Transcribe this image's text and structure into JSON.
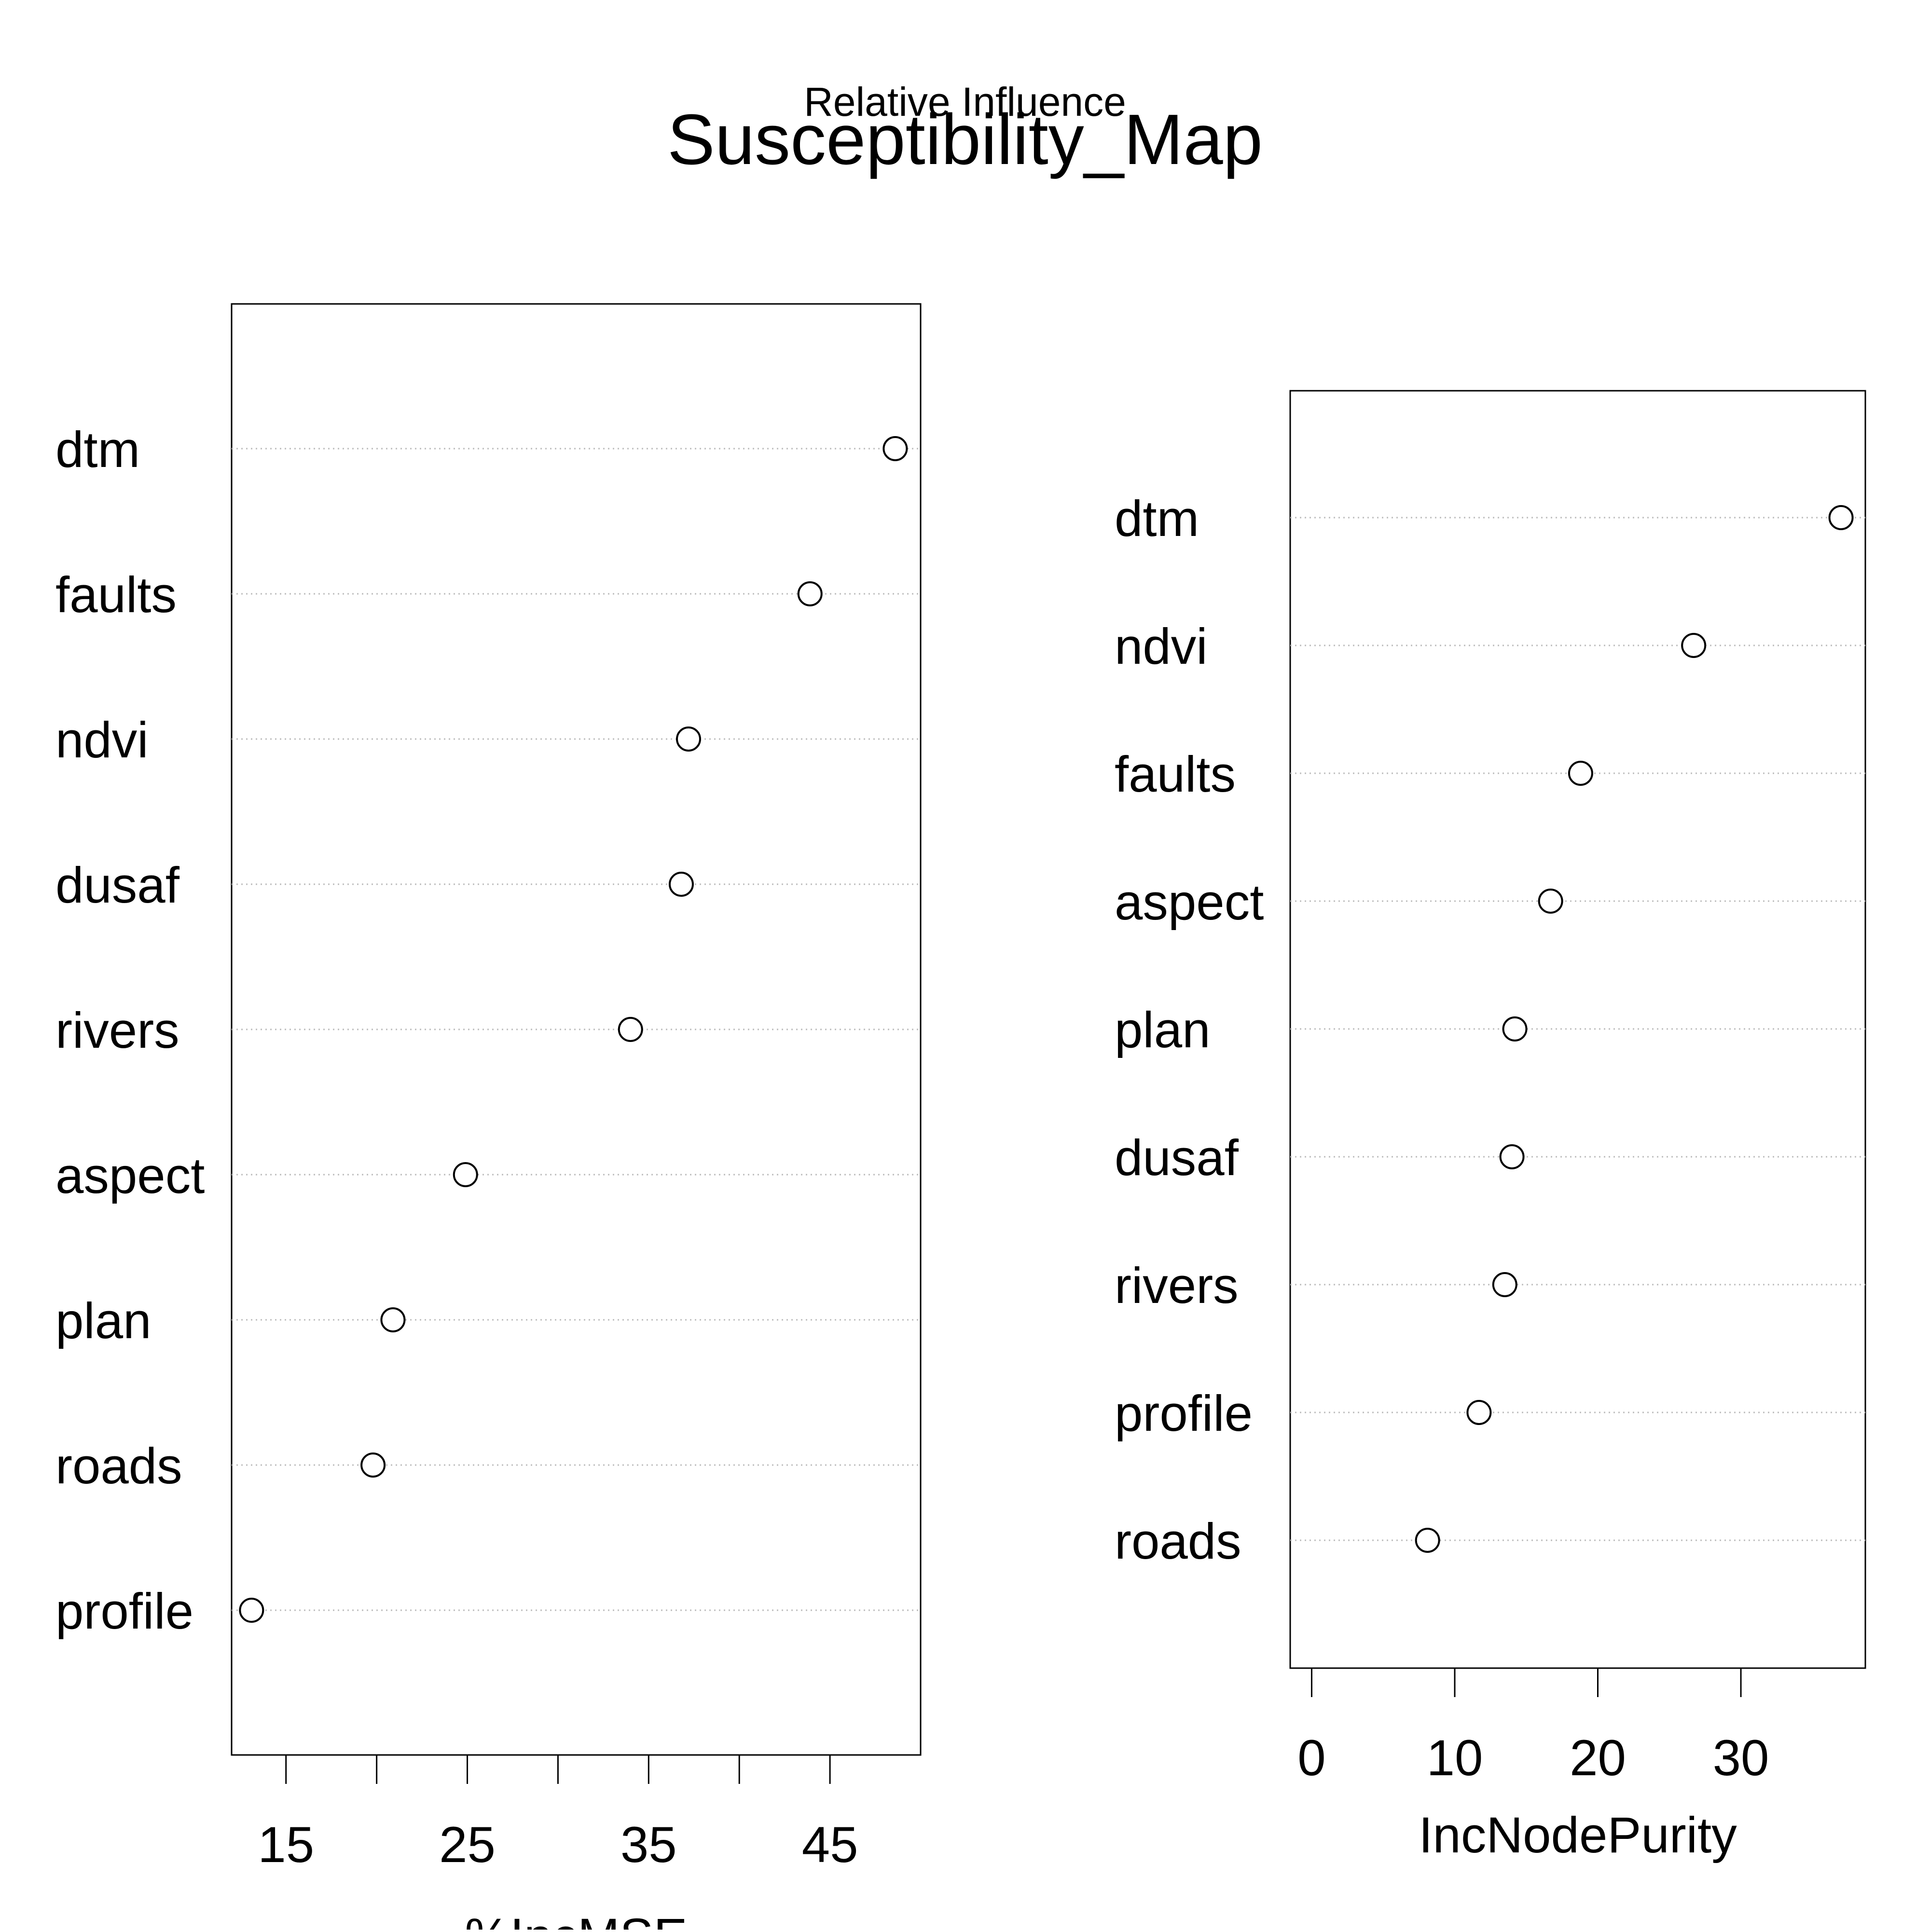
{
  "figure": {
    "suptitle": "Relative Influence",
    "title": "Susceptibility_Map"
  },
  "chart_data": [
    {
      "type": "scatter",
      "title": "",
      "xlabel": "%IncMSE",
      "ylabel": "",
      "categories": [
        "dtm",
        "faults",
        "ndvi",
        "dusaf",
        "rivers",
        "aspect",
        "plan",
        "roads",
        "profile"
      ],
      "values": [
        48.6,
        43.9,
        37.2,
        36.8,
        34.0,
        24.9,
        20.9,
        19.8,
        13.1
      ],
      "xlim": [
        12,
        50
      ],
      "xticks": [
        15,
        20,
        25,
        30,
        35,
        40,
        45
      ],
      "xtick_labels": [
        "15",
        "",
        "25",
        "",
        "35",
        "",
        "45"
      ],
      "grid": "dotted horizontal",
      "marker": "open circle"
    },
    {
      "type": "scatter",
      "title": "",
      "xlabel": "IncNodePurity",
      "ylabel": "",
      "categories": [
        "dtm",
        "ndvi",
        "faults",
        "aspect",
        "plan",
        "dusaf",
        "rivers",
        "profile",
        "roads"
      ],
      "values": [
        37.0,
        26.7,
        18.8,
        16.7,
        14.2,
        14.0,
        13.5,
        11.7,
        8.1
      ],
      "xlim": [
        -1.5,
        38.7
      ],
      "xticks": [
        0,
        10,
        20,
        30
      ],
      "xtick_labels": [
        "0",
        "10",
        "20",
        "30"
      ],
      "grid": "dotted horizontal",
      "marker": "open circle"
    }
  ]
}
